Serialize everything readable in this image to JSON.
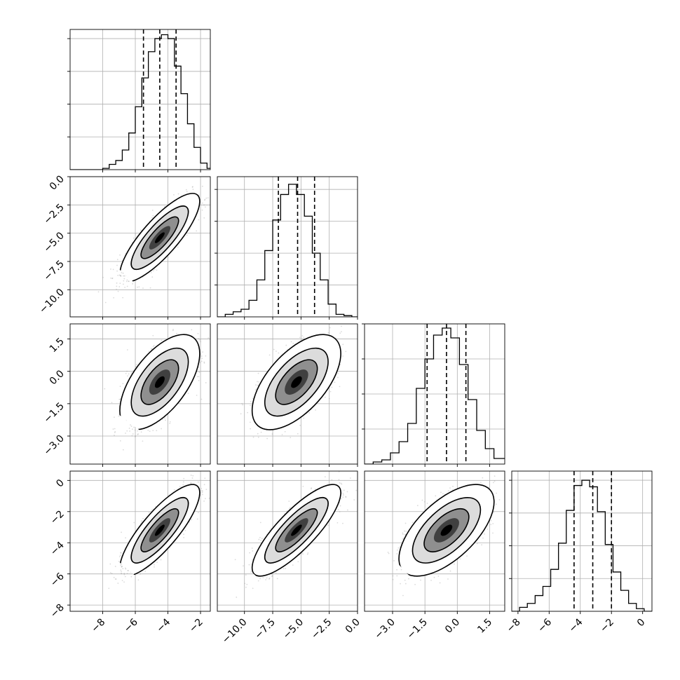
{
  "chart_data": {
    "type": "corner",
    "grid": true,
    "parameters": [
      {
        "range": [
          -10,
          -1.4
        ],
        "ticks": [
          -8,
          -6,
          -4,
          -2
        ],
        "tick_labels": [
          "−8",
          "−6",
          "−4",
          "−2"
        ],
        "quantiles": [
          -5.5,
          -4.5,
          -3.5
        ],
        "hist_ylim": [
          0,
          1070
        ],
        "hist_bins": [
          -10.0,
          -9.6,
          -9.2,
          -8.8,
          -8.4,
          -8.0,
          -7.6,
          -7.2,
          -6.8,
          -6.4,
          -6.0,
          -5.6,
          -5.2,
          -4.8,
          -4.4,
          -4.0,
          -3.6,
          -3.2,
          -2.8,
          -2.4,
          -2.0,
          -1.6,
          -1.4
        ],
        "hist_counts": [
          0,
          0,
          0,
          0,
          0,
          10,
          40,
          70,
          150,
          280,
          480,
          700,
          900,
          1000,
          1030,
          1000,
          790,
          580,
          350,
          170,
          50,
          10
        ],
        "mean": -4.5,
        "sd": 1.0
      },
      {
        "range": [
          -12.4,
          0
        ],
        "ticks": [
          -10.0,
          -7.5,
          -5.0,
          -2.5,
          0.0
        ],
        "tick_labels": [
          "−10.0",
          "−7.5",
          "−5.0",
          "−2.5",
          "0.0"
        ],
        "quantiles": [
          -7.0,
          -5.3,
          -3.8
        ],
        "hist_ylim": [
          0,
          1100
        ],
        "hist_bins": [
          -12.4,
          -11.7,
          -11.0,
          -10.3,
          -9.6,
          -8.9,
          -8.2,
          -7.5,
          -6.8,
          -6.1,
          -5.4,
          -4.7,
          -4.0,
          -3.3,
          -2.6,
          -1.9,
          -1.2,
          -0.5,
          0.0
        ],
        "hist_counts": [
          0,
          20,
          40,
          60,
          130,
          290,
          520,
          760,
          960,
          1040,
          960,
          790,
          500,
          290,
          100,
          20,
          10,
          0
        ],
        "mean": -5.4,
        "sd": 1.6
      },
      {
        "range": [
          -4.3,
          2.2
        ],
        "ticks": [
          -3.0,
          -1.5,
          0.0,
          1.5
        ],
        "tick_labels": [
          "−3.0",
          "−1.5",
          "0.0",
          "1.5"
        ],
        "quantiles": [
          -1.4,
          -0.5,
          0.4
        ],
        "hist_ylim": [
          0,
          1000
        ],
        "hist_bins": [
          -4.3,
          -3.9,
          -3.5,
          -3.1,
          -2.7,
          -2.3,
          -1.9,
          -1.5,
          -1.1,
          -0.7,
          -0.3,
          0.1,
          0.5,
          0.9,
          1.3,
          1.7,
          2.2
        ],
        "hist_counts": [
          0,
          15,
          30,
          80,
          160,
          290,
          540,
          750,
          920,
          970,
          900,
          710,
          460,
          240,
          110,
          40
        ],
        "mean": -0.5,
        "sd": 0.9
      },
      {
        "range": [
          -8.4,
          0.6
        ],
        "ticks": [
          -8,
          -6,
          -4,
          -2,
          0
        ],
        "tick_labels": [
          "−8",
          "−6",
          "−4",
          "−2",
          "0"
        ],
        "quantiles": [
          -4.4,
          -3.2,
          -2.0
        ],
        "hist_ylim": [
          0,
          1070
        ],
        "hist_bins": [
          -8.4,
          -7.9,
          -7.4,
          -6.9,
          -6.4,
          -5.9,
          -5.4,
          -4.9,
          -4.4,
          -3.9,
          -3.4,
          -2.9,
          -2.4,
          -1.9,
          -1.4,
          -0.9,
          -0.4,
          0.1,
          0.6
        ],
        "hist_counts": [
          0,
          30,
          60,
          120,
          190,
          320,
          520,
          770,
          960,
          1000,
          950,
          760,
          510,
          300,
          160,
          60,
          20,
          0
        ],
        "mean": -3.2,
        "sd": 1.2
      }
    ],
    "correlations": {
      "1-0": 0.82,
      "2-0": 0.6,
      "2-1": 0.6,
      "3-0": 0.82,
      "3-1": 0.82,
      "3-2": 0.62
    },
    "left_tick_labels": {
      "1": [
        "0.0",
        "−2.5",
        "−5.0",
        "−7.5",
        "−10.0"
      ],
      "2": [
        "1.5",
        "0.0",
        "−1.5",
        "−3.0"
      ],
      "3": [
        "0",
        "−2",
        "−4",
        "−6",
        "−8"
      ]
    },
    "left_tick_values": {
      "1": [
        0.0,
        -2.5,
        -5.0,
        -7.5,
        -10.0
      ],
      "2": [
        1.5,
        0.0,
        -1.5,
        -3.0
      ],
      "3": [
        0,
        -2,
        -4,
        -6,
        -8
      ]
    },
    "hist_yticks": [
      250,
      500,
      750,
      1000
    ]
  }
}
